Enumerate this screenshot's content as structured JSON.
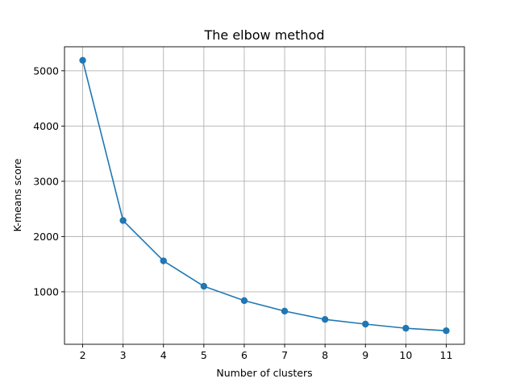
{
  "chart_data": {
    "type": "line",
    "title": "The elbow method",
    "xlabel": "Number of clusters",
    "ylabel": "K-means score",
    "x": [
      2,
      3,
      4,
      5,
      6,
      7,
      8,
      9,
      10,
      11
    ],
    "series": [
      {
        "values": [
          5190,
          2290,
          1560,
          1100,
          840,
          650,
          500,
          415,
          340,
          295
        ],
        "color": "#1f77b4",
        "marker": "circle"
      }
    ],
    "xticks": [
      2,
      3,
      4,
      5,
      6,
      7,
      8,
      9,
      10,
      11
    ],
    "yticks": [
      1000,
      2000,
      3000,
      4000,
      5000
    ],
    "xlim": [
      1.55,
      11.45
    ],
    "ylim": [
      50,
      5435
    ],
    "grid": true
  }
}
